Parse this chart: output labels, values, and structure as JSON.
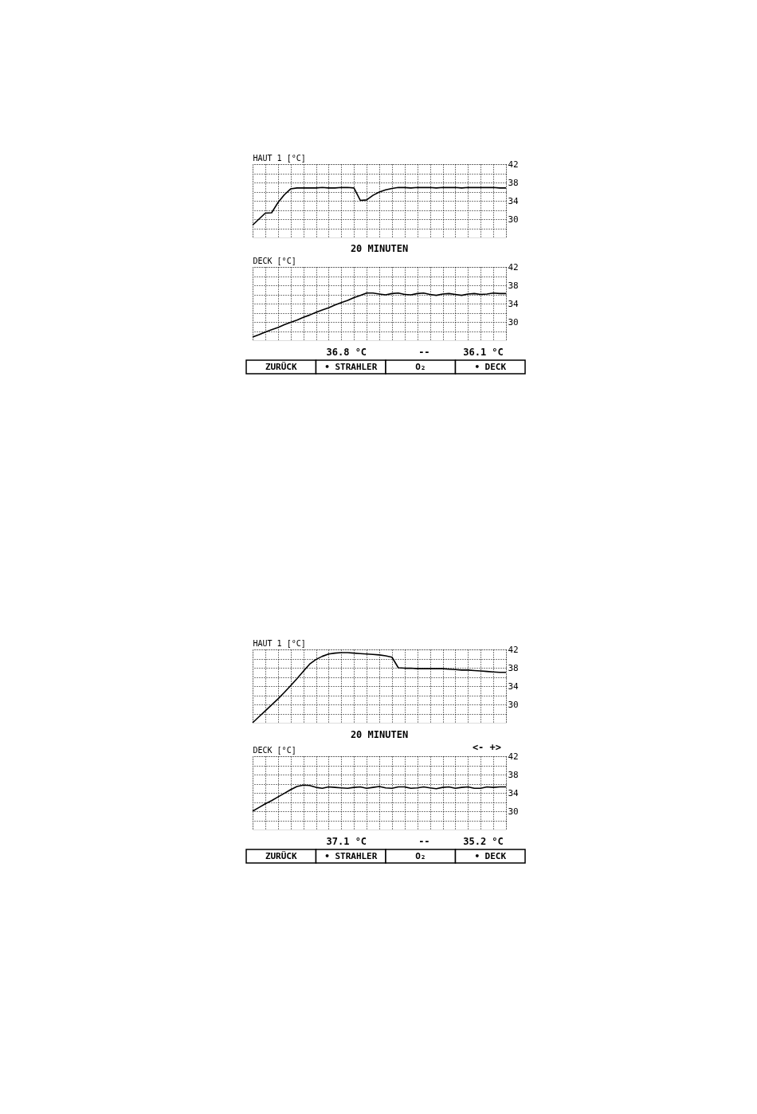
{
  "chart_data": [
    {
      "type": "line",
      "ylabel": "HAUT 1 [°C]",
      "categories": [
        null,
        null,
        null,
        null,
        null,
        null,
        null,
        null,
        null,
        null,
        null,
        null,
        null,
        null,
        null,
        null,
        null,
        null,
        null,
        null,
        null,
        null,
        null,
        null,
        null,
        null,
        null,
        null,
        null,
        null,
        null,
        null,
        null,
        null,
        null,
        null,
        null,
        null,
        null,
        null,
        null
      ],
      "series": [
        {
          "color": "#000000",
          "values": [
            28.7,
            30.0,
            31.3,
            31.4,
            33.6,
            35.3,
            36.6,
            36.8,
            36.8,
            36.8,
            36.8,
            36.9,
            36.8,
            36.8,
            36.9,
            36.9,
            36.8,
            34.1,
            34.2,
            35.2,
            35.9,
            36.4,
            36.7,
            36.9,
            36.9,
            36.8,
            36.9,
            36.9,
            36.9,
            36.8,
            36.9,
            36.9,
            36.9,
            36.8,
            36.9,
            36.9,
            36.9,
            36.9,
            36.9,
            36.8,
            36.8
          ]
        }
      ],
      "ylim": [
        26,
        42
      ],
      "yticks": [
        {
          "value": 28,
          "label": null
        },
        30,
        {
          "value": 32,
          "label": null
        },
        34,
        {
          "value": 36,
          "label": null
        },
        38,
        {
          "value": 40,
          "label": null
        },
        42
      ],
      "grid": true,
      "line_style": "solid"
    },
    {
      "type": "line",
      "ylabel": "DECK [°C]",
      "categories": [
        null,
        null,
        null,
        null,
        null,
        null,
        null,
        null,
        null,
        null,
        null,
        null,
        null,
        null,
        null,
        null,
        null,
        null,
        null,
        null,
        null,
        null,
        null,
        null,
        null,
        null,
        null,
        null,
        null,
        null,
        null,
        null,
        null,
        null,
        null,
        null,
        null,
        null,
        null,
        null,
        null
      ],
      "series": [
        {
          "color": "#000000",
          "values": [
            26.7,
            27.2,
            27.8,
            28.3,
            28.8,
            29.4,
            29.9,
            30.4,
            31.0,
            31.5,
            32.1,
            32.6,
            33.1,
            33.7,
            34.2,
            34.7,
            35.3,
            35.8,
            36.3,
            36.3,
            36.1,
            35.9,
            36.2,
            36.3,
            36.0,
            35.9,
            36.2,
            36.3,
            36.0,
            35.8,
            36.1,
            36.2,
            36.0,
            35.8,
            36.1,
            36.2,
            36.0,
            36.1,
            36.3,
            36.2,
            36.2
          ]
        }
      ],
      "ylim": [
        26,
        42
      ],
      "yticks": [
        {
          "value": 28,
          "label": null
        },
        30,
        {
          "value": 32,
          "label": null
        },
        34,
        {
          "value": 36,
          "label": null
        },
        38,
        {
          "value": 40,
          "label": null
        },
        42
      ],
      "grid": true,
      "line_style": "solid",
      "annotations": [
        "20 MINUTEN",
        "36.8 °C",
        "--",
        "36.1 °C",
        "ZURÜCK",
        "• STRAHLER",
        "O₂",
        "• DECK"
      ]
    },
    {
      "type": "line",
      "ylabel": "HAUT 1 [°C]",
      "categories": [
        null,
        null,
        null,
        null,
        null,
        null,
        null,
        null,
        null,
        null,
        null,
        null,
        null,
        null,
        null,
        null,
        null,
        null,
        null,
        null,
        null,
        null,
        null,
        null,
        null,
        null,
        null,
        null,
        null,
        null,
        null,
        null,
        null,
        null,
        null,
        null,
        null,
        null,
        null,
        null,
        null
      ],
      "series": [
        {
          "color": "#000000",
          "values": [
            26.0,
            27.3,
            28.6,
            29.9,
            31.2,
            32.6,
            34.1,
            35.6,
            37.2,
            38.8,
            39.8,
            40.5,
            41.0,
            41.2,
            41.3,
            41.3,
            41.2,
            41.1,
            41.0,
            40.9,
            40.8,
            40.6,
            40.3,
            38.0,
            37.9,
            37.9,
            37.8,
            37.8,
            37.8,
            37.8,
            37.8,
            37.7,
            37.6,
            37.5,
            37.5,
            37.4,
            37.3,
            37.2,
            37.1,
            37.0,
            37.0
          ]
        }
      ],
      "ylim": [
        26,
        42
      ],
      "yticks": [
        {
          "value": 28,
          "label": null
        },
        30,
        {
          "value": 32,
          "label": null
        },
        34,
        {
          "value": 36,
          "label": null
        },
        38,
        {
          "value": 40,
          "label": null
        },
        42
      ],
      "grid": true,
      "line_style": "solid"
    },
    {
      "type": "line",
      "ylabel": "DECK [°C]",
      "categories": [
        null,
        null,
        null,
        null,
        null,
        null,
        null,
        null,
        null,
        null,
        null,
        null,
        null,
        null,
        null,
        null,
        null,
        null,
        null,
        null,
        null,
        null,
        null,
        null,
        null,
        null,
        null,
        null,
        null,
        null,
        null,
        null,
        null,
        null,
        null,
        null,
        null,
        null,
        null,
        null,
        null
      ],
      "series": [
        {
          "color": "#000000",
          "values": [
            30.0,
            30.8,
            31.6,
            32.3,
            33.1,
            33.9,
            34.7,
            35.4,
            35.7,
            35.6,
            35.2,
            35.0,
            35.3,
            35.2,
            35.1,
            35.0,
            35.2,
            35.3,
            35.0,
            35.2,
            35.4,
            35.1,
            35.0,
            35.3,
            35.3,
            35.0,
            35.1,
            35.3,
            35.1,
            34.9,
            35.2,
            35.3,
            35.0,
            35.2,
            35.3,
            35.0,
            35.0,
            35.3,
            35.2,
            35.3,
            35.3
          ]
        }
      ],
      "ylim": [
        26,
        42
      ],
      "yticks": [
        {
          "value": 28,
          "label": null
        },
        30,
        {
          "value": 32,
          "label": null
        },
        34,
        {
          "value": 36,
          "label": null
        },
        38,
        {
          "value": 40,
          "label": null
        },
        42
      ],
      "grid": true,
      "line_style": "solid",
      "annotations": [
        "20 MINUTEN",
        "<- +>",
        "37.1 °C",
        "--",
        "35.2 °C",
        "ZURÜCK",
        "• STRAHLER",
        "O₂",
        "• DECK"
      ]
    }
  ]
}
